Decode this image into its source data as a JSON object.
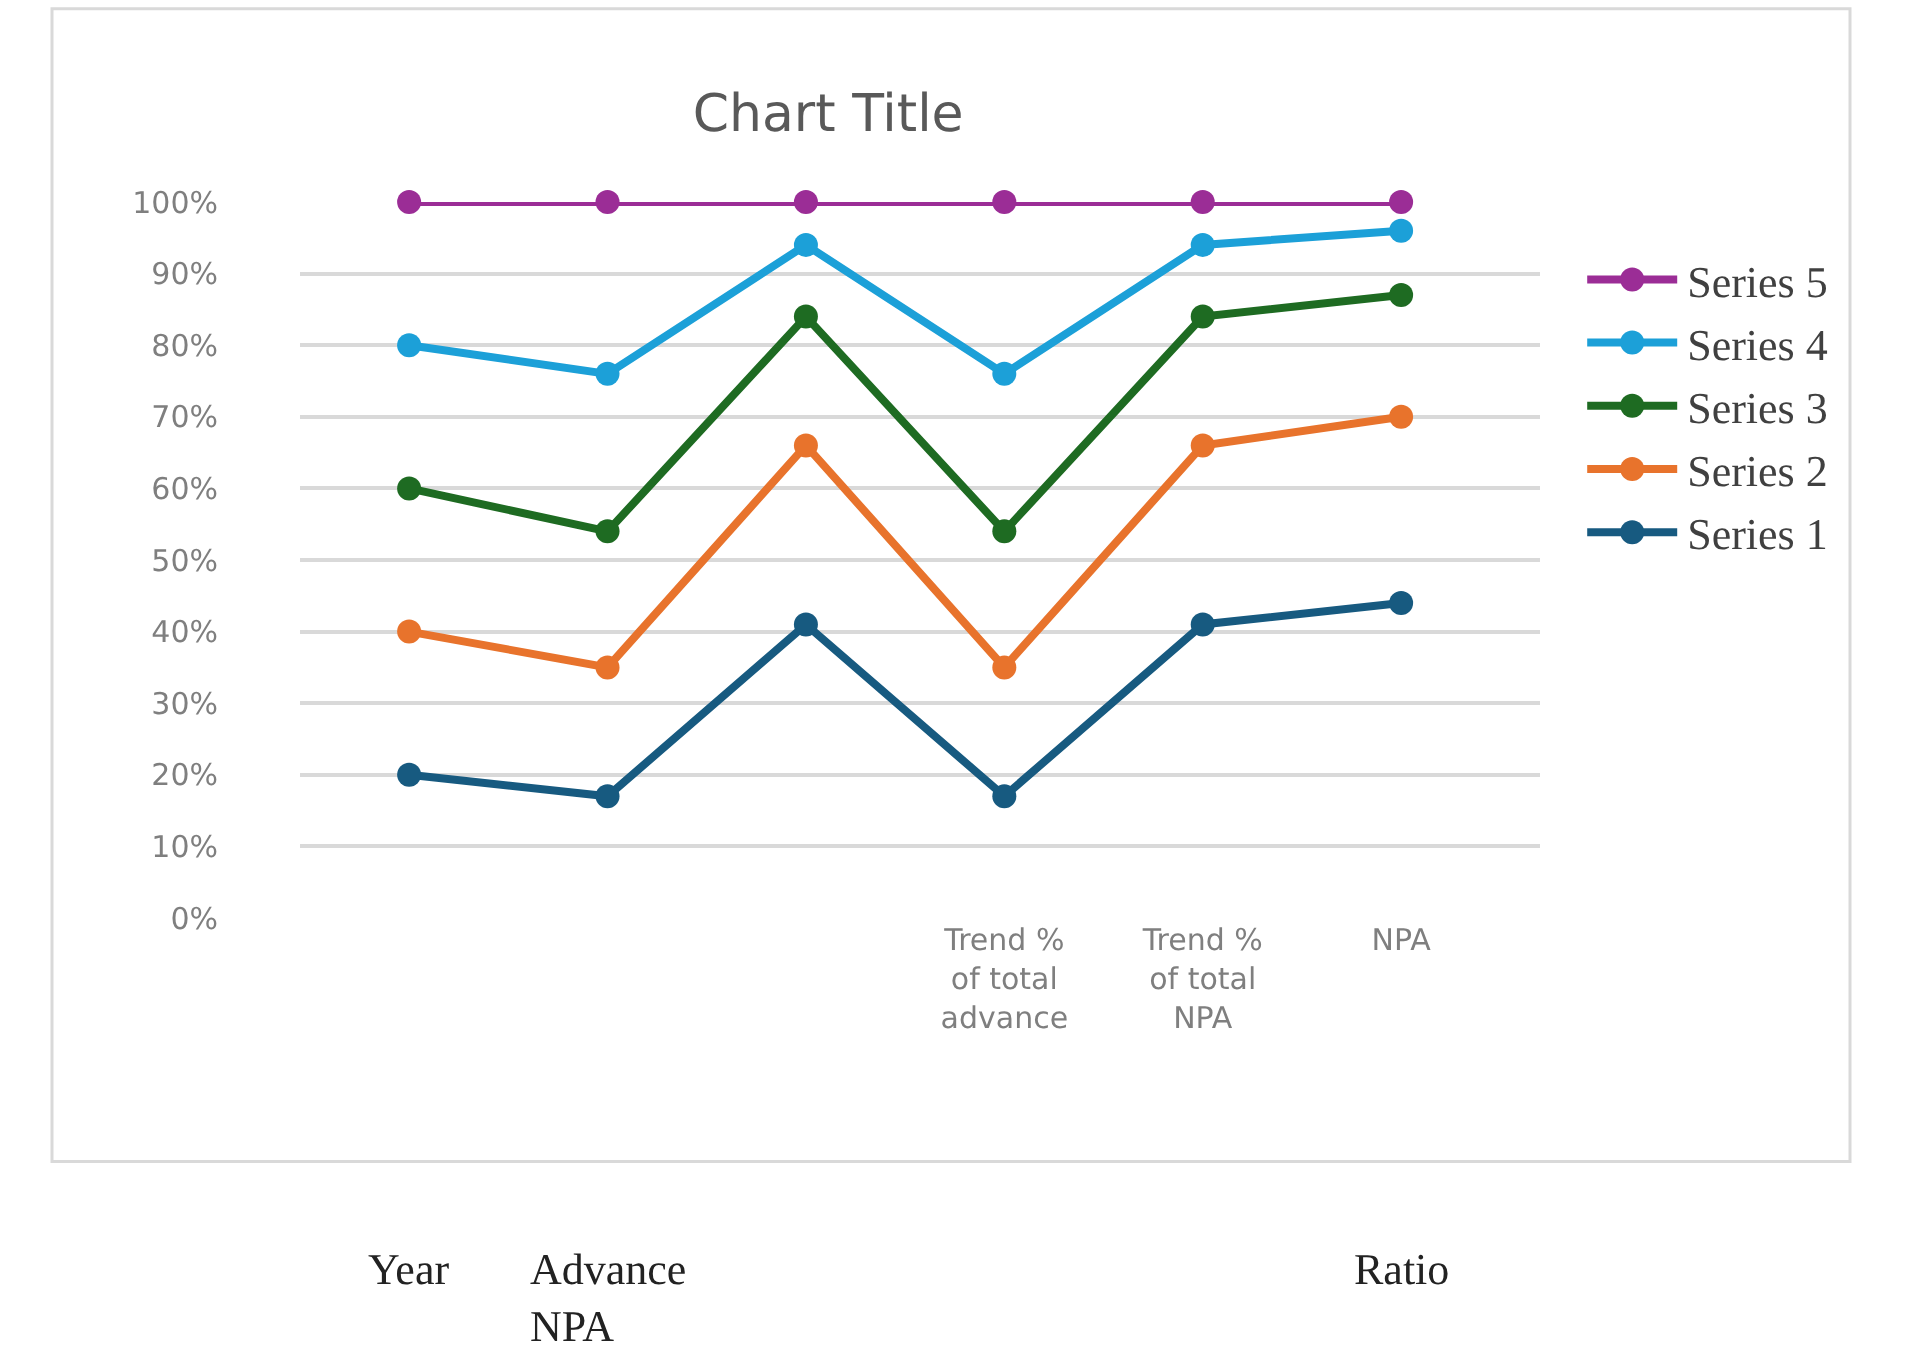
{
  "chart_data": {
    "type": "line",
    "title": "Chart Title",
    "categories": [
      null,
      null,
      null,
      "Trend % of total advance",
      "Trend % of total NPA",
      "NPA"
    ],
    "series": [
      {
        "name": "Series 1",
        "color": "#175a80",
        "values": [
          20,
          17,
          41,
          17,
          41,
          44
        ]
      },
      {
        "name": "Series 2",
        "color": "#e8732c",
        "values": [
          40,
          35,
          66,
          35,
          66,
          70
        ]
      },
      {
        "name": "Series 3",
        "color": "#1e6b22",
        "values": [
          60,
          54,
          84,
          54,
          84,
          87
        ]
      },
      {
        "name": "Series 4",
        "color": "#1ca0d8",
        "values": [
          80,
          76,
          94,
          76,
          94,
          96
        ]
      },
      {
        "name": "Series 5",
        "color": "#9b2d96",
        "values": [
          100,
          100,
          100,
          100,
          100,
          100
        ]
      }
    ],
    "ylim": [
      0,
      100
    ],
    "yticks": [
      {
        "value": 0,
        "label": "0%"
      },
      {
        "value": 10,
        "label": "10%"
      },
      {
        "value": 20,
        "label": "20%"
      },
      {
        "value": 30,
        "label": "30%"
      },
      {
        "value": 40,
        "label": "40%"
      },
      {
        "value": 50,
        "label": "50%"
      },
      {
        "value": 60,
        "label": "60%"
      },
      {
        "value": 70,
        "label": "70%"
      },
      {
        "value": 80,
        "label": "80%"
      },
      {
        "value": 90,
        "label": "90%"
      },
      {
        "value": 100,
        "label": "100%"
      }
    ],
    "grid": "y",
    "legend": "right",
    "marker": "circle",
    "line_style": "solid",
    "annotations": [
      "Year",
      "Advance NPA",
      "Ratio"
    ]
  }
}
